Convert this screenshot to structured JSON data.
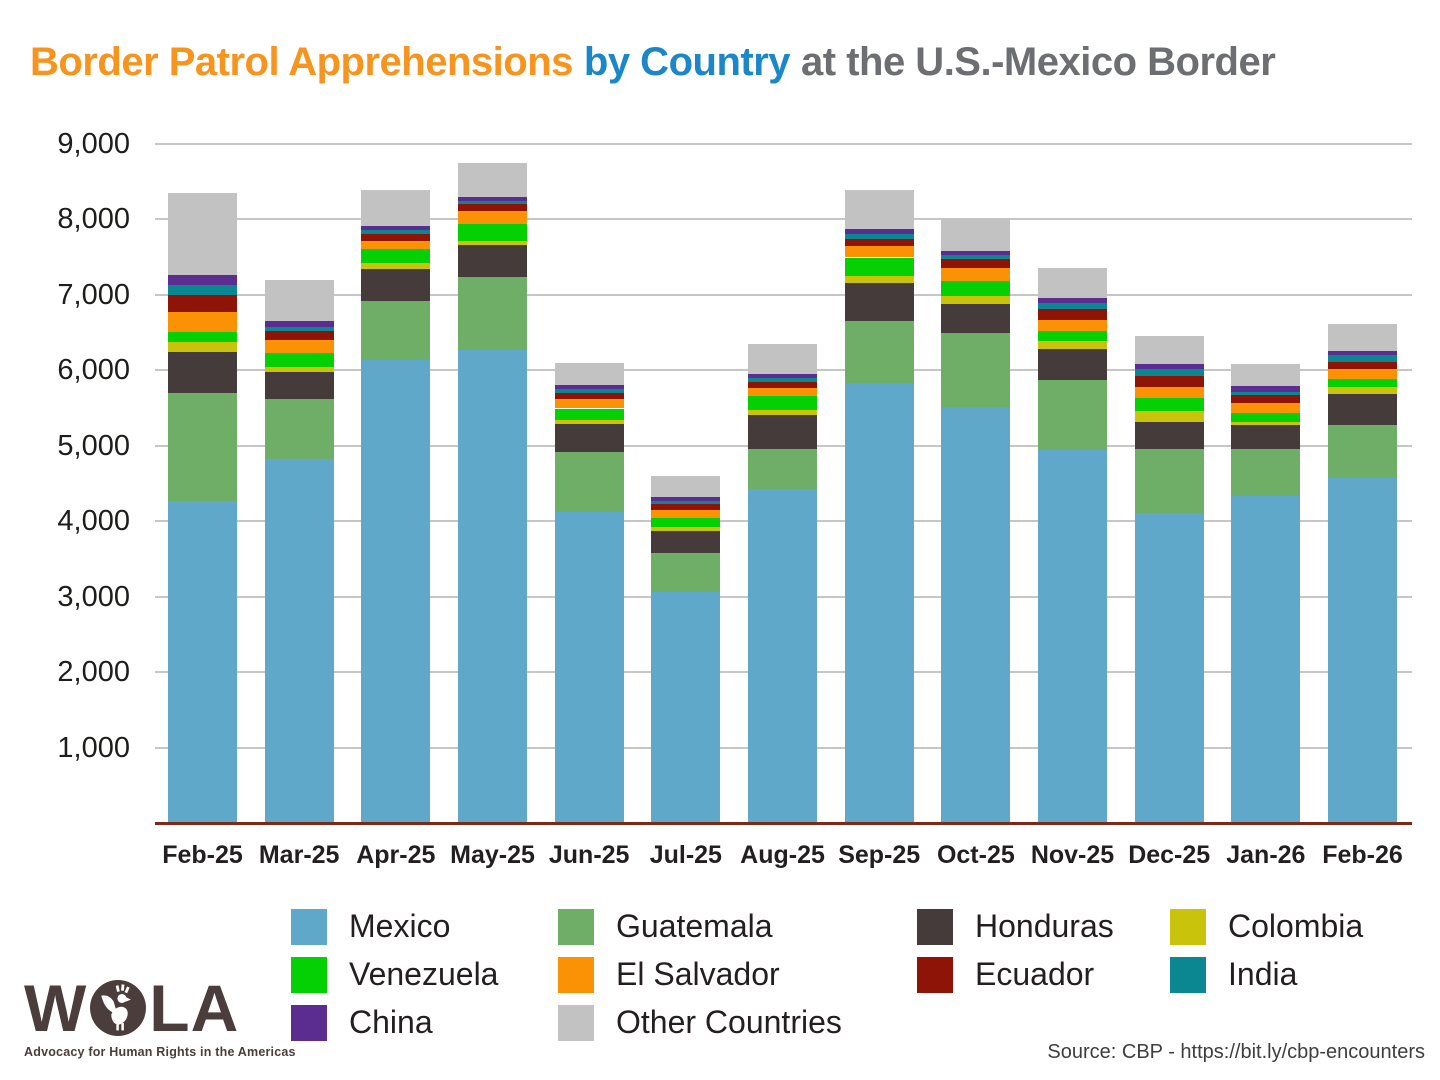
{
  "title": {
    "part1": "Border Patrol Apprehensions",
    "part2": "by Country",
    "part3": "at the U.S.-Mexico Border",
    "colors": {
      "part1": "#F7941D",
      "part2": "#1B87C9",
      "part3": "#6D6E71"
    }
  },
  "chart_data": {
    "type": "bar",
    "subtype": "stacked",
    "categories": [
      "Feb-25",
      "Mar-25",
      "Apr-25",
      "May-25",
      "Jun-25",
      "Jul-25",
      "Aug-25",
      "Sep-25",
      "Oct-25",
      "Nov-25",
      "Dec-25",
      "Jan-26",
      "Feb-26"
    ],
    "series": [
      {
        "name": "Mexico",
        "color": "#5FA8C9",
        "values": [
          4270,
          4820,
          6130,
          6260,
          4120,
          3060,
          4430,
          5830,
          5510,
          4940,
          4100,
          4330,
          4570
        ]
      },
      {
        "name": "Guatemala",
        "color": "#6FAE66",
        "values": [
          1420,
          790,
          790,
          970,
          790,
          520,
          520,
          820,
          980,
          930,
          850,
          620,
          700
        ]
      },
      {
        "name": "Honduras",
        "color": "#463B3B",
        "values": [
          550,
          360,
          420,
          430,
          370,
          290,
          450,
          500,
          390,
          410,
          360,
          320,
          410
        ]
      },
      {
        "name": "Colombia",
        "color": "#C9C40B",
        "values": [
          125,
          70,
          75,
          50,
          55,
          45,
          75,
          90,
          95,
          110,
          145,
          45,
          90
        ]
      },
      {
        "name": "Venezuela",
        "color": "#04D004",
        "values": [
          140,
          190,
          185,
          230,
          155,
          120,
          175,
          250,
          210,
          125,
          175,
          120,
          115
        ]
      },
      {
        "name": "El Salvador",
        "color": "#FB9105",
        "values": [
          260,
          165,
          115,
          165,
          120,
          110,
          110,
          150,
          170,
          150,
          140,
          125,
          130
        ]
      },
      {
        "name": "Ecuador",
        "color": "#8E1408",
        "values": [
          225,
          120,
          80,
          90,
          80,
          75,
          80,
          100,
          120,
          145,
          145,
          110,
          85
        ]
      },
      {
        "name": "India",
        "color": "#0B8791",
        "values": [
          140,
          60,
          60,
          45,
          55,
          45,
          55,
          65,
          45,
          75,
          95,
          45,
          100
        ]
      },
      {
        "name": "China",
        "color": "#5B2D91",
        "values": [
          130,
          70,
          55,
          55,
          55,
          55,
          55,
          65,
          55,
          65,
          65,
          75,
          55
        ]
      },
      {
        "name": "Other Countries",
        "color": "#C2C2C2",
        "values": [
          1085,
          550,
          475,
          450,
          290,
          275,
          390,
          520,
          420,
          405,
          380,
          290,
          350
        ]
      }
    ],
    "totals": [
      8345,
      7195,
      8385,
      8745,
      6090,
      4595,
      6340,
      8390,
      7995,
      7355,
      6455,
      6080,
      6605
    ],
    "y_tick_labels": [
      "1,000",
      "2,000",
      "3,000",
      "4,000",
      "5,000",
      "6,000",
      "7,000",
      "8,000",
      "9,000"
    ],
    "ylim": [
      0,
      9000
    ],
    "grid": true,
    "legend_position": "bottom"
  },
  "legend": {
    "columns": [
      [
        "Mexico",
        "Venezuela",
        "China"
      ],
      [
        "Guatemala",
        "El Salvador",
        "Other Countries"
      ],
      [
        "Honduras",
        "Ecuador"
      ],
      [
        "Colombia",
        "India"
      ]
    ]
  },
  "logo": {
    "letters_left": "W",
    "letters_right": "LA",
    "tagline": "Advocacy for Human Rights in the Americas"
  },
  "source_text": "Source: CBP - https://bit.ly/cbp-encounters"
}
